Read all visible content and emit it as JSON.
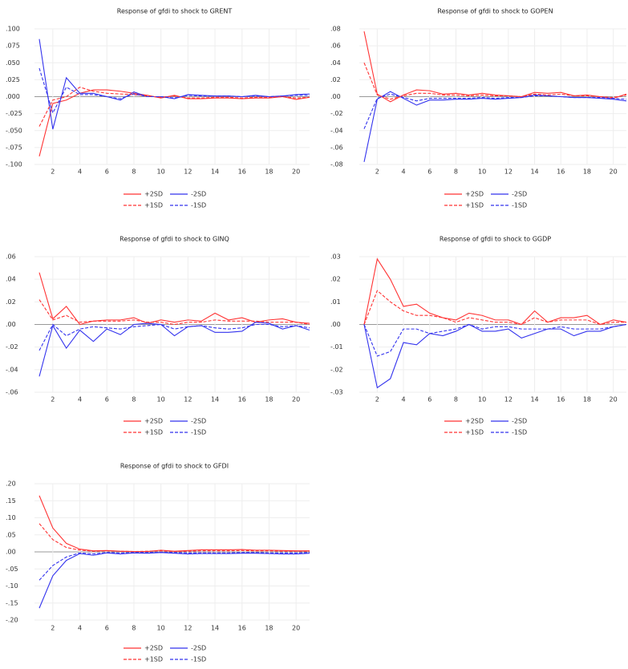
{
  "chart_data": [
    {
      "type": "line",
      "title": "Response of gfdi to shock to GRENT",
      "x": [
        1,
        2,
        3,
        4,
        5,
        6,
        7,
        8,
        9,
        10,
        11,
        12,
        13,
        14,
        15,
        16,
        17,
        18,
        19,
        20,
        21
      ],
      "xlim": [
        1,
        21
      ],
      "xticks": [
        2,
        4,
        6,
        8,
        10,
        12,
        14,
        16,
        18,
        20
      ],
      "ylim": [
        -0.1,
        0.1
      ],
      "yticks": [
        {
          "value": 0.1,
          "label": ".100"
        },
        {
          "value": 0.075,
          "label": ".075"
        },
        {
          "value": 0.05,
          "label": ".050"
        },
        {
          "value": 0.025,
          "label": ".025"
        },
        {
          "value": 0,
          "label": ".000"
        },
        {
          "value": -0.025,
          "label": "-.025"
        },
        {
          "value": -0.05,
          "label": "-.050"
        },
        {
          "value": -0.075,
          "label": "-.075"
        },
        {
          "value": -0.1,
          "label": "-.100"
        }
      ],
      "grid": true,
      "series": [
        {
          "name": "+2SD",
          "color": "#ff3333",
          "linestyle": "solid",
          "values": [
            -0.088,
            -0.01,
            -0.005,
            0.005,
            0.01,
            0.01,
            0.008,
            0.005,
            0.002,
            -0.002,
            0.002,
            -0.003,
            -0.003,
            -0.002,
            -0.002,
            -0.003,
            -0.002,
            -0.002,
            0,
            -0.004,
            -0.001
          ]
        },
        {
          "name": "-2SD",
          "color": "#3333ee",
          "linestyle": "solid",
          "values": [
            0.085,
            -0.048,
            0.028,
            0.005,
            0.005,
            0,
            -0.005,
            0.007,
            0,
            0,
            -0.003,
            0.003,
            0.002,
            0.001,
            0.001,
            0,
            0.002,
            0,
            0.001,
            0.003,
            0.004
          ]
        },
        {
          "name": "+1SD",
          "color": "#ff3333",
          "linestyle": "dashed",
          "values": [
            -0.044,
            -0.005,
            0,
            0.014,
            0.008,
            0.005,
            0.004,
            0.003,
            0.001,
            -0.001,
            0.001,
            -0.002,
            -0.002,
            -0.001,
            -0.001,
            -0.002,
            -0.001,
            -0.001,
            0,
            -0.002,
            -0.001
          ]
        },
        {
          "name": "-1SD",
          "color": "#3333ee",
          "linestyle": "dashed",
          "values": [
            0.042,
            -0.024,
            0.014,
            0.003,
            0.003,
            0,
            -0.003,
            0.004,
            0,
            0,
            -0.002,
            0.002,
            0.001,
            0.001,
            0.001,
            0,
            0.001,
            0,
            0.001,
            0.002,
            0.002
          ]
        }
      ]
    },
    {
      "type": "line",
      "title": "Response of gfdi to shock to GOPEN",
      "x": [
        1,
        2,
        3,
        4,
        5,
        6,
        7,
        8,
        9,
        10,
        11,
        12,
        13,
        14,
        15,
        16,
        17,
        18,
        19,
        20,
        21
      ],
      "xlim": [
        1,
        21
      ],
      "xticks": [
        2,
        4,
        6,
        8,
        10,
        12,
        14,
        16,
        18,
        20
      ],
      "ylim": [
        -0.08,
        0.08
      ],
      "yticks": [
        {
          "value": 0.08,
          "label": ".08"
        },
        {
          "value": 0.06,
          "label": ".06"
        },
        {
          "value": 0.04,
          "label": ".04"
        },
        {
          "value": 0.02,
          "label": ".02"
        },
        {
          "value": 0,
          "label": ".00"
        },
        {
          "value": -0.02,
          "label": "-.02"
        },
        {
          "value": -0.04,
          "label": "-.04"
        },
        {
          "value": -0.06,
          "label": "-.06"
        },
        {
          "value": -0.08,
          "label": "-.08"
        }
      ],
      "grid": true,
      "series": [
        {
          "name": "+2SD",
          "color": "#ff3333",
          "linestyle": "solid",
          "values": [
            0.077,
            0.003,
            -0.006,
            0.002,
            0.008,
            0.007,
            0.003,
            0.004,
            0.002,
            0.004,
            0.002,
            0.001,
            0,
            0.005,
            0.004,
            0.005,
            0.001,
            0.002,
            0,
            -0.002,
            0.003
          ]
        },
        {
          "name": "-2SD",
          "color": "#3333ee",
          "linestyle": "solid",
          "values": [
            -0.077,
            -0.003,
            0.006,
            -0.002,
            -0.01,
            -0.004,
            -0.004,
            -0.003,
            -0.003,
            -0.002,
            -0.003,
            -0.002,
            -0.001,
            0.002,
            0.001,
            0,
            -0.001,
            -0.001,
            -0.002,
            -0.003,
            -0.005
          ]
        },
        {
          "name": "+1SD",
          "color": "#ff3333",
          "linestyle": "dashed",
          "values": [
            0.04,
            0.002,
            -0.003,
            0.001,
            0.004,
            0.004,
            0.002,
            0.002,
            0.001,
            0.002,
            0.001,
            0.001,
            0,
            0.003,
            0.002,
            0.003,
            0.001,
            0.001,
            0,
            -0.001,
            0.002
          ]
        },
        {
          "name": "-1SD",
          "color": "#3333ee",
          "linestyle": "dashed",
          "values": [
            -0.038,
            -0.002,
            0.003,
            -0.001,
            -0.005,
            -0.002,
            -0.002,
            -0.002,
            -0.002,
            -0.001,
            -0.002,
            -0.001,
            -0.001,
            0.001,
            0.001,
            0,
            -0.001,
            -0.001,
            -0.001,
            -0.002,
            -0.003
          ]
        }
      ]
    },
    {
      "type": "line",
      "title": "Response of gfdi to shock to GINQ",
      "x": [
        1,
        2,
        3,
        4,
        5,
        6,
        7,
        8,
        9,
        10,
        11,
        12,
        13,
        14,
        15,
        16,
        17,
        18,
        19,
        20,
        21
      ],
      "xlim": [
        1,
        21
      ],
      "xticks": [
        2,
        4,
        6,
        8,
        10,
        12,
        14,
        16,
        18,
        20
      ],
      "ylim": [
        -0.06,
        0.06
      ],
      "yticks": [
        {
          "value": 0.06,
          "label": ".06"
        },
        {
          "value": 0.04,
          "label": ".04"
        },
        {
          "value": 0.02,
          "label": ".02"
        },
        {
          "value": 0,
          "label": ".00"
        },
        {
          "value": -0.02,
          "label": "-.02"
        },
        {
          "value": -0.04,
          "label": "-.04"
        },
        {
          "value": -0.06,
          "label": "-.06"
        }
      ],
      "grid": true,
      "series": [
        {
          "name": "+2SD",
          "color": "#ff3333",
          "linestyle": "solid",
          "values": [
            0.046,
            0.005,
            0.016,
            0,
            0.003,
            0.004,
            0.004,
            0.006,
            0.001,
            0.004,
            0.002,
            0.004,
            0.003,
            0.01,
            0.004,
            0.006,
            0.002,
            0.004,
            0.005,
            0.002,
            0.001
          ]
        },
        {
          "name": "-2SD",
          "color": "#3333ee",
          "linestyle": "solid",
          "values": [
            -0.046,
            -0.001,
            -0.021,
            -0.005,
            -0.015,
            -0.004,
            -0.009,
            0,
            0.001,
            0,
            -0.01,
            -0.002,
            -0.001,
            -0.007,
            -0.007,
            -0.006,
            0.002,
            0.001,
            -0.004,
            -0.001,
            -0.005
          ]
        },
        {
          "name": "+1SD",
          "color": "#ff3333",
          "linestyle": "dashed",
          "values": [
            0.022,
            0.004,
            0.008,
            0.002,
            0.003,
            0.003,
            0.003,
            0.004,
            0.002,
            0.002,
            0,
            0.002,
            0.002,
            0.004,
            0.003,
            0.003,
            0.003,
            0.002,
            0.002,
            0.002,
            0
          ]
        },
        {
          "name": "-1SD",
          "color": "#3333ee",
          "linestyle": "dashed",
          "values": [
            -0.023,
            0,
            -0.01,
            -0.004,
            -0.002,
            -0.003,
            -0.004,
            -0.002,
            -0.001,
            0,
            -0.004,
            -0.002,
            -0.001,
            -0.003,
            -0.004,
            -0.003,
            0,
            0,
            -0.002,
            -0.001,
            -0.003
          ]
        }
      ]
    },
    {
      "type": "line",
      "title": "Response of gfdi to shock to GGDP",
      "x": [
        1,
        2,
        3,
        4,
        5,
        6,
        7,
        8,
        9,
        10,
        11,
        12,
        13,
        14,
        15,
        16,
        17,
        18,
        19,
        20,
        21
      ],
      "xlim": [
        1,
        21
      ],
      "xticks": [
        2,
        4,
        6,
        8,
        10,
        12,
        14,
        16,
        18,
        20
      ],
      "ylim": [
        -0.03,
        0.03
      ],
      "yticks": [
        {
          "value": 0.03,
          "label": ".03"
        },
        {
          "value": 0.02,
          "label": ".02"
        },
        {
          "value": 0.01,
          "label": ".01"
        },
        {
          "value": 0,
          "label": ".00"
        },
        {
          "value": -0.01,
          "label": "-.01"
        },
        {
          "value": -0.02,
          "label": "-.02"
        },
        {
          "value": -0.03,
          "label": "-.03"
        }
      ],
      "grid": true,
      "series": [
        {
          "name": "+2SD",
          "color": "#ff3333",
          "linestyle": "solid",
          "values": [
            0,
            0.029,
            0.02,
            0.008,
            0.009,
            0.005,
            0.003,
            0.002,
            0.005,
            0.004,
            0.002,
            0.002,
            0,
            0.006,
            0.001,
            0.003,
            0.003,
            0.004,
            0,
            0.002,
            0.001
          ]
        },
        {
          "name": "-2SD",
          "color": "#3333ee",
          "linestyle": "solid",
          "values": [
            0,
            -0.028,
            -0.024,
            -0.008,
            -0.009,
            -0.004,
            -0.005,
            -0.003,
            0,
            -0.003,
            -0.003,
            -0.002,
            -0.006,
            -0.004,
            -0.002,
            -0.002,
            -0.005,
            -0.003,
            -0.003,
            -0.001,
            0
          ]
        },
        {
          "name": "+1SD",
          "color": "#ff3333",
          "linestyle": "dashed",
          "values": [
            0,
            0.015,
            0.01,
            0.006,
            0.004,
            0.004,
            0.003,
            0.001,
            0.003,
            0.002,
            0.001,
            0.001,
            0,
            0.003,
            0.001,
            0.002,
            0.002,
            0.002,
            0,
            0.001,
            0.001
          ]
        },
        {
          "name": "-1SD",
          "color": "#3333ee",
          "linestyle": "dashed",
          "values": [
            0,
            -0.014,
            -0.012,
            -0.002,
            -0.002,
            -0.004,
            -0.003,
            -0.002,
            0,
            -0.002,
            -0.001,
            -0.001,
            -0.002,
            -0.002,
            -0.002,
            -0.001,
            -0.002,
            -0.002,
            -0.002,
            -0.001,
            0
          ]
        }
      ]
    },
    {
      "type": "line",
      "title": "Response of gfdi to shock to GFDI",
      "x": [
        1,
        2,
        3,
        4,
        5,
        6,
        7,
        8,
        9,
        10,
        11,
        12,
        13,
        14,
        15,
        16,
        17,
        18,
        19,
        20,
        21
      ],
      "xlim": [
        1,
        21
      ],
      "xticks": [
        2,
        4,
        6,
        8,
        10,
        12,
        14,
        16,
        18,
        20
      ],
      "ylim": [
        -0.2,
        0.2
      ],
      "yticks": [
        {
          "value": 0.2,
          "label": ".20"
        },
        {
          "value": 0.15,
          "label": ".15"
        },
        {
          "value": 0.1,
          "label": ".10"
        },
        {
          "value": 0.05,
          "label": ".05"
        },
        {
          "value": 0,
          "label": ".00"
        },
        {
          "value": -0.05,
          "label": "-.05"
        },
        {
          "value": -0.1,
          "label": "-.10"
        },
        {
          "value": -0.15,
          "label": "-.15"
        },
        {
          "value": -0.2,
          "label": "-.20"
        }
      ],
      "grid": true,
      "series": [
        {
          "name": "+2SD",
          "color": "#ff3333",
          "linestyle": "solid",
          "values": [
            0.165,
            0.07,
            0.025,
            0.008,
            0.003,
            0.004,
            0.002,
            0.001,
            0.001,
            0.005,
            0.002,
            0.004,
            0.006,
            0.006,
            0.006,
            0.007,
            0.005,
            0.005,
            0.004,
            0.003,
            0.003
          ]
        },
        {
          "name": "-2SD",
          "color": "#3333ee",
          "linestyle": "solid",
          "values": [
            -0.165,
            -0.07,
            -0.025,
            -0.005,
            -0.01,
            -0.003,
            -0.006,
            -0.003,
            -0.004,
            -0.002,
            -0.004,
            -0.006,
            -0.005,
            -0.005,
            -0.005,
            -0.004,
            -0.004,
            -0.005,
            -0.006,
            -0.006,
            -0.004
          ]
        },
        {
          "name": "+1SD",
          "color": "#ff3333",
          "linestyle": "dashed",
          "values": [
            0.083,
            0.036,
            0.013,
            0.005,
            0.002,
            0.003,
            0.002,
            0.001,
            0.002,
            0.003,
            0.001,
            0.002,
            0.003,
            0.003,
            0.003,
            0.004,
            0.003,
            0.003,
            0.002,
            0.002,
            0.002
          ]
        },
        {
          "name": "-1SD",
          "color": "#3333ee",
          "linestyle": "dashed",
          "values": [
            -0.083,
            -0.04,
            -0.015,
            -0.003,
            -0.006,
            -0.002,
            -0.003,
            -0.002,
            -0.002,
            -0.001,
            -0.002,
            -0.003,
            -0.003,
            -0.003,
            -0.003,
            -0.002,
            -0.002,
            -0.003,
            -0.003,
            -0.003,
            -0.002
          ]
        }
      ]
    }
  ]
}
